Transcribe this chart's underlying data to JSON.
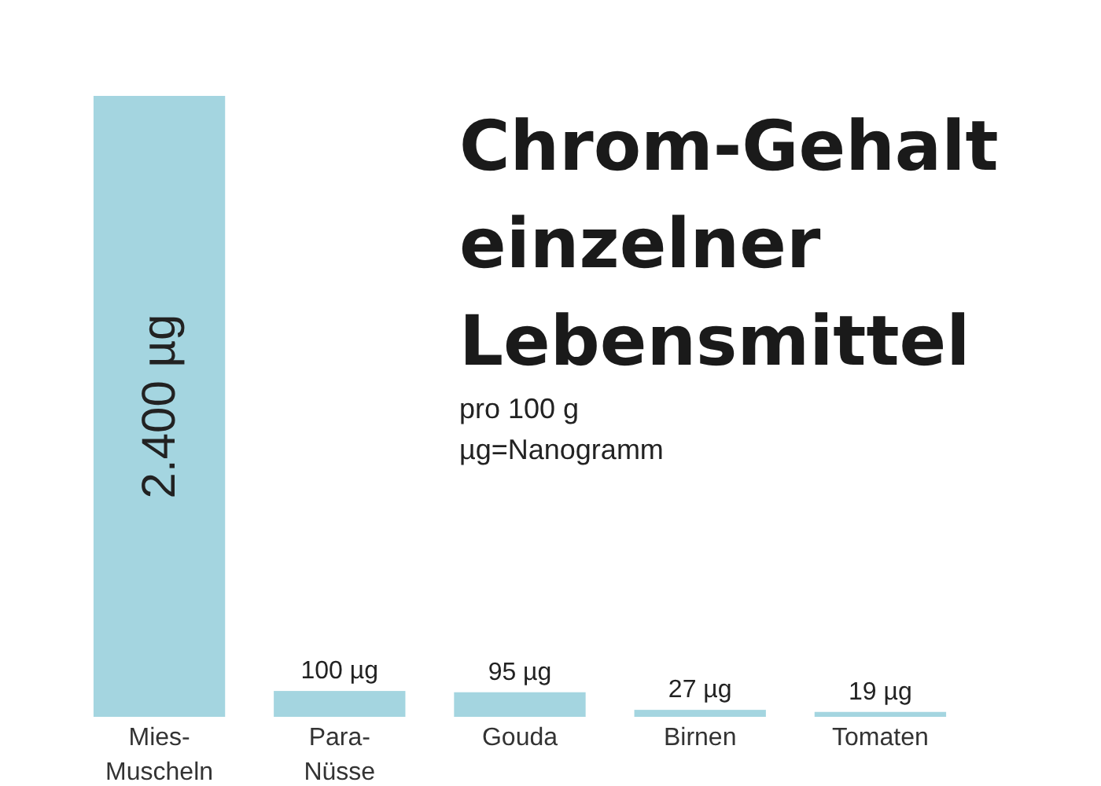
{
  "chart_data": {
    "type": "bar",
    "title": "Chrom-Gehalt\neinzelner\nLebensmittel",
    "subtitle": "pro 100 g\nµg=Nanogramm",
    "categories": [
      "Mies-\nMuscheln",
      "Para-\nNüsse",
      "Gouda",
      "Birnen",
      "Tomaten"
    ],
    "values": [
      2400,
      100,
      95,
      27,
      19
    ],
    "color": "#a4d5e0",
    "value_labels": [
      "2.400 µg",
      "100 µg",
      "95 µg",
      "27 µg",
      "19 µg"
    ]
  }
}
